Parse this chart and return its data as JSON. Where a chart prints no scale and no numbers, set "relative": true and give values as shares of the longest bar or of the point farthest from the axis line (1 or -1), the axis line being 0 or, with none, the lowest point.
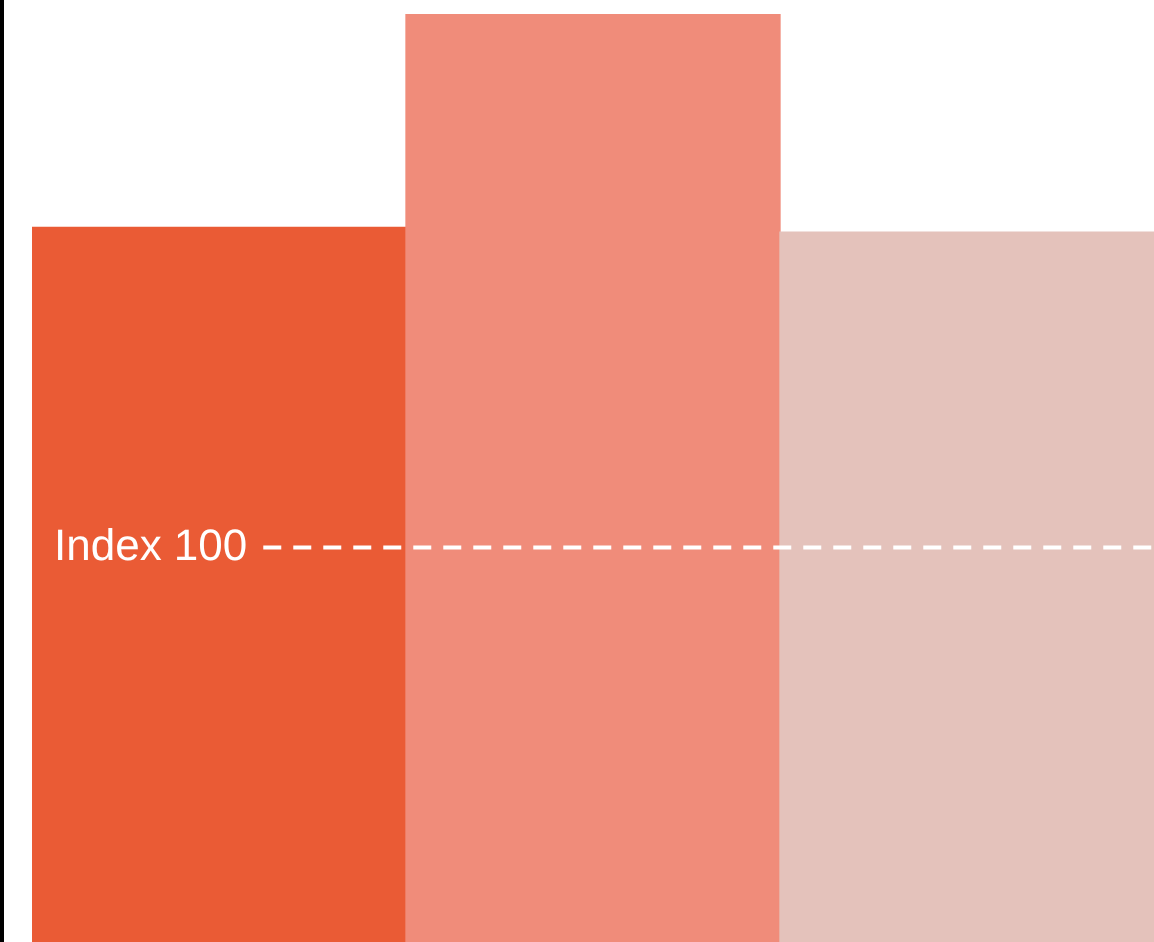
{
  "chart_data": {
    "type": "bar",
    "relative": true,
    "categories": [
      null,
      null,
      null
    ],
    "values": [
      0.77,
      1,
      0.765
    ],
    "colors": [
      "#ea5b35",
      "#f08c7a",
      "#e4c2bb"
    ],
    "ref_lines": [
      {
        "axis": "y",
        "value": 0.425,
        "label": "Index 100",
        "color": "#ffffff",
        "line_style": "dashed"
      }
    ]
  }
}
